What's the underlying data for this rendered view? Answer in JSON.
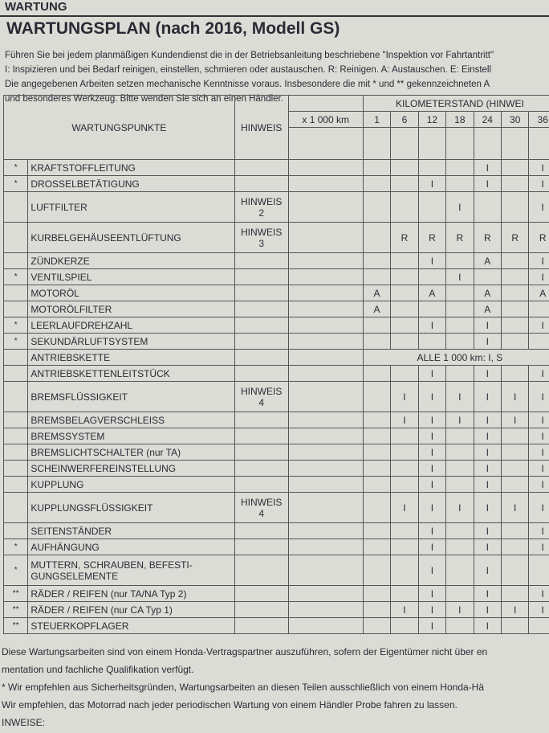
{
  "header": {
    "section": "WARTUNG",
    "title": "WARTUNGSPLAN (nach 2016, Modell GS)",
    "intro": [
      "Führen Sie bei jedem planmäßigen Kundendienst die in der Betriebsanleitung beschriebene \"Inspektion vor Fahrtantritt\"",
      "I: Inspizieren und bei Bedarf reinigen, einstellen, schmieren oder austauschen. R: Reinigen. A: Austauschen. E: Einstell",
      "Die angegebenen Arbeiten setzen mechanische Kenntnisse voraus. Insbesondere die mit * und ** gekennzeichneten A",
      "und besonderes Werkzeug. Bitte wenden Sie sich an einen Händler."
    ]
  },
  "table": {
    "col_item": "WARTUNGSPUNKTE",
    "col_note": "HINWEIS",
    "col_unit": "x 1 000 km",
    "col_km": "KILOMETERSTAND (HINWEI",
    "km": [
      "1",
      "6",
      "12",
      "18",
      "24",
      "30",
      "36"
    ],
    "rows": [
      {
        "mark": "*",
        "item": "KRAFTSTOFFLEITUNG",
        "note": null,
        "cells": [
          null,
          null,
          null,
          null,
          "I",
          null,
          "I"
        ]
      },
      {
        "mark": "*",
        "item": "DROSSELBETÄTIGUNG",
        "note": null,
        "cells": [
          null,
          null,
          "I",
          null,
          "I",
          null,
          "I"
        ]
      },
      {
        "mark": null,
        "item": "LUFTFILTER",
        "note": "HINWEIS 2",
        "cells": [
          null,
          null,
          null,
          "I",
          null,
          null,
          "I"
        ]
      },
      {
        "mark": null,
        "item": "KURBELGEHÄUSEENTLÜFTUNG",
        "note": "HINWEIS 3",
        "cells": [
          null,
          "R",
          "R",
          "R",
          "R",
          "R",
          "R"
        ]
      },
      {
        "mark": null,
        "item": "ZÜNDKERZE",
        "note": null,
        "cells": [
          null,
          null,
          "I",
          null,
          "A",
          null,
          "I"
        ]
      },
      {
        "mark": "*",
        "item": "VENTILSPIEL",
        "note": null,
        "cells": [
          null,
          null,
          null,
          "I",
          null,
          null,
          "I"
        ]
      },
      {
        "mark": null,
        "item": "MOTORÖL",
        "note": null,
        "cells": [
          "A",
          null,
          "A",
          null,
          "A",
          null,
          "A"
        ]
      },
      {
        "mark": null,
        "item": "MOTORÖLFILTER",
        "note": null,
        "cells": [
          "A",
          null,
          null,
          null,
          "A",
          null,
          null
        ]
      },
      {
        "mark": "*",
        "item": "LEERLAUFDREHZAHL",
        "note": null,
        "cells": [
          null,
          null,
          "I",
          null,
          "I",
          null,
          "I"
        ]
      },
      {
        "mark": "*",
        "item": "SEKUNDÄRLUFTSYSTEM",
        "note": null,
        "cells": [
          null,
          null,
          null,
          null,
          "I",
          null,
          null
        ]
      },
      {
        "mark": null,
        "item": "ANTRIEBSKETTE",
        "note": null,
        "span": "ALLE 1 000 km: I, S"
      },
      {
        "mark": null,
        "item": "ANTRIEBSKETTENLEITSTÜCK",
        "note": null,
        "cells": [
          null,
          null,
          "I",
          null,
          "I",
          null,
          "I"
        ]
      },
      {
        "mark": null,
        "item": "BREMSFLÜSSIGKEIT",
        "note": "HINWEIS 4",
        "cells": [
          null,
          "I",
          "I",
          "I",
          "I",
          "I",
          "I"
        ]
      },
      {
        "mark": null,
        "item": "BREMSBELAGVERSCHLEISS",
        "note": null,
        "cells": [
          null,
          "I",
          "I",
          "I",
          "I",
          "I",
          "I"
        ]
      },
      {
        "mark": null,
        "item": "BREMSSYSTEM",
        "note": null,
        "cells": [
          null,
          null,
          "I",
          null,
          "I",
          null,
          "I"
        ]
      },
      {
        "mark": null,
        "item": "BREMSLICHTSCHALTER (nur TA)",
        "note": null,
        "cells": [
          null,
          null,
          "I",
          null,
          "I",
          null,
          "I"
        ]
      },
      {
        "mark": null,
        "item": "SCHEINWERFEREINSTELLUNG",
        "note": null,
        "cells": [
          null,
          null,
          "I",
          null,
          "I",
          null,
          "I"
        ]
      },
      {
        "mark": null,
        "item": "KUPPLUNG",
        "note": null,
        "cells": [
          null,
          null,
          "I",
          null,
          "I",
          null,
          "I"
        ]
      },
      {
        "mark": null,
        "item": "KUPPLUNGSFLÜSSIGKEIT",
        "note": "HINWEIS 4",
        "cells": [
          null,
          "I",
          "I",
          "I",
          "I",
          "I",
          "I"
        ]
      },
      {
        "mark": null,
        "item": "SEITENSTÄNDER",
        "note": null,
        "cells": [
          null,
          null,
          "I",
          null,
          "I",
          null,
          "I"
        ]
      },
      {
        "mark": "*",
        "item": "AUFHÄNGUNG",
        "note": null,
        "cells": [
          null,
          null,
          "I",
          null,
          "I",
          null,
          "I"
        ]
      },
      {
        "mark": "*",
        "item": "MUTTERN, SCHRAUBEN, BEFESTI-GUNGSELEMENTE",
        "note": null,
        "cells": [
          null,
          null,
          "I",
          null,
          "I",
          null,
          null
        ]
      },
      {
        "mark": "**",
        "item": "RÄDER / REIFEN (nur TA/NA Typ 2)",
        "note": null,
        "cells": [
          null,
          null,
          "I",
          null,
          "I",
          null,
          "I"
        ]
      },
      {
        "mark": "**",
        "item": "RÄDER / REIFEN (nur CA Typ 1)",
        "note": null,
        "cells": [
          null,
          "I",
          "I",
          "I",
          "I",
          "I",
          "I"
        ]
      },
      {
        "mark": "**",
        "item": "STEUERKOPFLAGER",
        "note": null,
        "cells": [
          null,
          null,
          "I",
          null,
          "I",
          null,
          null
        ]
      }
    ]
  },
  "notes": [
    "Diese Wartungsarbeiten sind von einem Honda-Vertragspartner auszuführen, sofern der Eigentümer nicht über en",
    "mentation und fachliche Qualifikation verfügt.",
    "* Wir empfehlen aus Sicherheitsgründen, Wartungsarbeiten an diesen Teilen ausschließlich von einem Honda-Hä",
    "Wir empfehlen, das Motorrad nach jeder periodischen Wartung von einem Händler Probe fahren zu lassen.",
    "INWEISE:"
  ]
}
